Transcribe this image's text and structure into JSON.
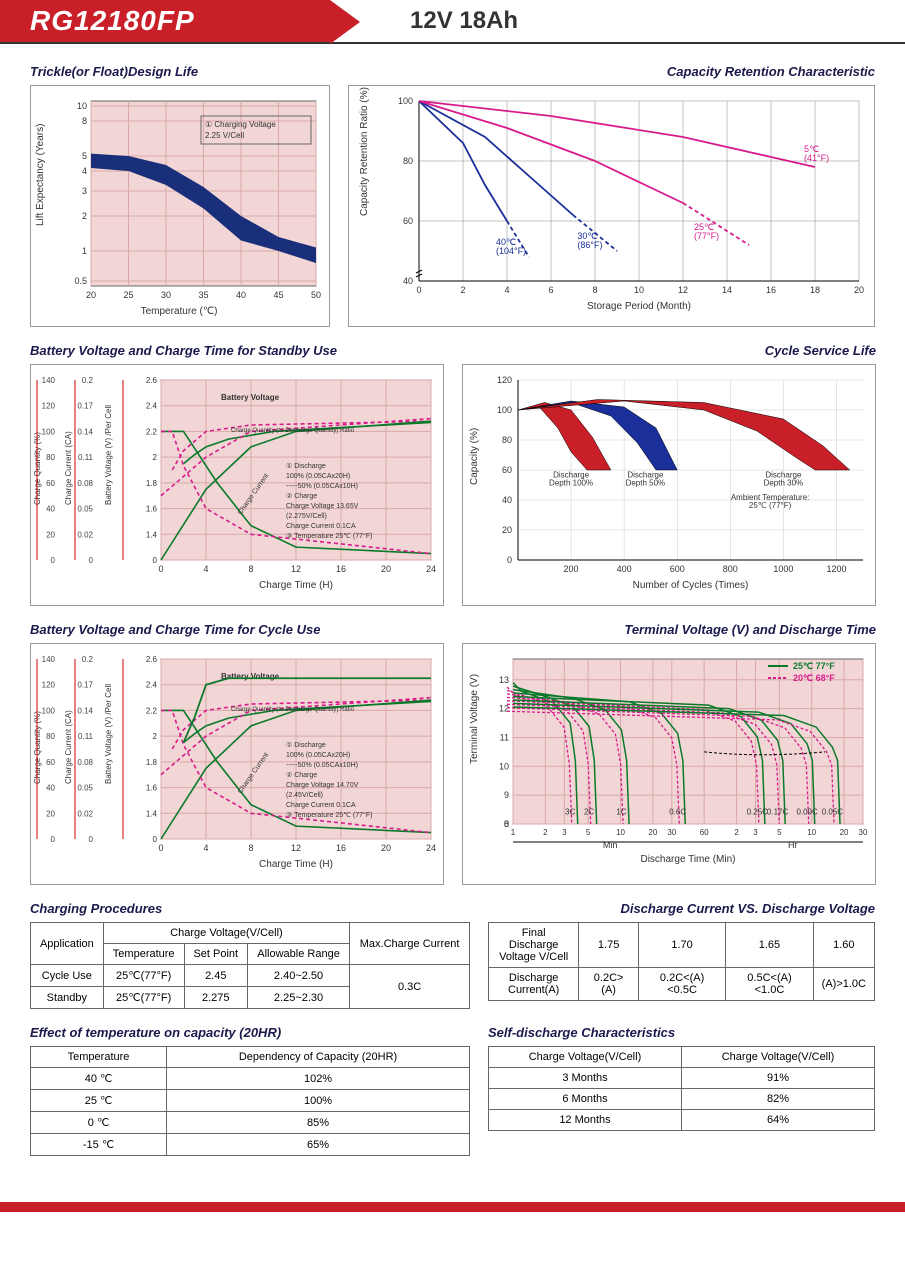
{
  "header": {
    "model": "RG12180FP",
    "spec": "12V  18Ah"
  },
  "charts": {
    "trickle": {
      "title": "Trickle(or Float)Design Life",
      "type": "area-band",
      "xlabel": "Temperature (℃)",
      "ylabel": "Lift  Expectancy (Years)",
      "xticks": [
        20,
        25,
        30,
        35,
        40,
        45,
        50
      ],
      "yticks": [
        0.5,
        1,
        2,
        3,
        4,
        5,
        8,
        10
      ],
      "legend_text": "① Charging Voltage\n2.25 V/Cell",
      "band_color": "#1a2f7a",
      "grid_color": "#d9a8a8",
      "grid_bg": "#f2d6d6",
      "band_upper": [
        [
          20,
          5.2
        ],
        [
          25,
          5.0
        ],
        [
          30,
          4.4
        ],
        [
          35,
          3.2
        ],
        [
          40,
          2.0
        ],
        [
          45,
          1.4
        ],
        [
          50,
          1.1
        ]
      ],
      "band_lower": [
        [
          20,
          4.2
        ],
        [
          25,
          4.0
        ],
        [
          30,
          3.3
        ],
        [
          35,
          2.3
        ],
        [
          40,
          1.3
        ],
        [
          45,
          1.0
        ],
        [
          50,
          0.8
        ]
      ]
    },
    "retention": {
      "title": "Capacity Retention Characteristic",
      "type": "line",
      "xlabel": "Storage Period (Month)",
      "ylabel": "Capacity Retention Ratio (%)",
      "xticks": [
        0,
        2,
        4,
        6,
        8,
        10,
        12,
        14,
        16,
        18,
        20
      ],
      "yticks": [
        40,
        60,
        80,
        100
      ],
      "series": [
        {
          "label": "40℃\n(104°F)",
          "color": "#1a2f9a",
          "solid": [
            [
              0,
              100
            ],
            [
              2,
              86
            ],
            [
              3,
              72
            ],
            [
              4,
              60
            ]
          ],
          "dashed": [
            [
              4,
              60
            ],
            [
              5,
              48
            ]
          ],
          "label_x": 3.5,
          "label_y": 52
        },
        {
          "label": "30℃\n(86°F)",
          "color": "#1a2f9a",
          "solid": [
            [
              0,
              100
            ],
            [
              3,
              88
            ],
            [
              5,
              75
            ],
            [
              7,
              62
            ]
          ],
          "dashed": [
            [
              7,
              62
            ],
            [
              9,
              50
            ]
          ],
          "label_x": 7.2,
          "label_y": 54
        },
        {
          "label": "25℃\n(77°F)",
          "color": "#d81b8c",
          "solid": [
            [
              0,
              100
            ],
            [
              4,
              91
            ],
            [
              8,
              80
            ],
            [
              12,
              66
            ]
          ],
          "dashed": [
            [
              12,
              66
            ],
            [
              15,
              52
            ]
          ],
          "label_x": 12.5,
          "label_y": 57
        },
        {
          "label": "5℃\n(41°F)",
          "color": "#d81b8c",
          "solid": [
            [
              0,
              100
            ],
            [
              6,
              95
            ],
            [
              12,
              88
            ],
            [
              18,
              78
            ]
          ],
          "dashed": [],
          "label_x": 17.5,
          "label_y": 83
        }
      ]
    },
    "standby": {
      "title": "Battery Voltage and Charge Time for Standby Use",
      "type": "multi-axis",
      "xlabel": "Charge Time (H)",
      "xticks": [
        0,
        4,
        8,
        12,
        16,
        20,
        24
      ],
      "y1": {
        "label": "Charge Quantity (%)",
        "ticks": [
          0,
          20,
          40,
          60,
          80,
          100,
          120,
          140
        ]
      },
      "y2": {
        "label": "Charge Current (CA)",
        "ticks": [
          0,
          0.02,
          0.05,
          0.08,
          0.11,
          0.14,
          0.17,
          0.2
        ]
      },
      "y3": {
        "label": "Battery Voltage (V) /Per Cell",
        "ticks": [
          0,
          1.4,
          1.6,
          1.8,
          2.0,
          2.2,
          2.4,
          2.6
        ]
      },
      "grid_bg": "#f2d6d6",
      "grid_color": "#d9a8a8",
      "curves": {
        "batt_voltage_solid": {
          "color": "#0a7a2a",
          "pts": [
            [
              2,
              1.95
            ],
            [
              3,
              2.02
            ],
            [
              4,
              2.08
            ],
            [
              6,
              2.14
            ],
            [
              10,
              2.2
            ],
            [
              24,
              2.27
            ]
          ]
        },
        "batt_voltage_dash": {
          "color": "#d81b8c",
          "pts": [
            [
              1,
              1.9
            ],
            [
              2,
              2.05
            ],
            [
              4,
              2.2
            ],
            [
              8,
              2.25
            ],
            [
              24,
              2.28
            ]
          ]
        },
        "charge_qty_solid": {
          "color": "#0a7a2a",
          "pts": [
            [
              0,
              0
            ],
            [
              4,
              55
            ],
            [
              8,
              88
            ],
            [
              12,
              100
            ],
            [
              24,
              108
            ]
          ]
        },
        "charge_qty_dash": {
          "color": "#d81b8c",
          "pts": [
            [
              0,
              50
            ],
            [
              4,
              80
            ],
            [
              8,
              100
            ],
            [
              24,
              110
            ]
          ]
        },
        "charge_current_solid": {
          "color": "#0a7a2a",
          "pts": [
            [
              0,
              0.14
            ],
            [
              2,
              0.14
            ],
            [
              3,
              0.12
            ],
            [
              5,
              0.08
            ],
            [
              8,
              0.03
            ],
            [
              12,
              0.01
            ],
            [
              24,
              0.005
            ]
          ]
        },
        "charge_current_dash": {
          "color": "#d81b8c",
          "pts": [
            [
              0,
              0.14
            ],
            [
              1,
              0.14
            ],
            [
              2,
              0.1
            ],
            [
              4,
              0.05
            ],
            [
              8,
              0.02
            ],
            [
              24,
              0.005
            ]
          ]
        }
      },
      "annot": [
        "① Discharge",
        "   100% (0.05CAx20H)",
        "-----50% (0.05CAx10H)",
        "② Charge",
        "   Charge Voltage 13.65V",
        "   (2.275V/Cell)",
        "   Charge Current 0.1CA",
        "③ Temperature 25℃ (77°F)"
      ],
      "annot_labels": [
        "Battery Voltage",
        "Charge Quantity (to-Discharge Quantity) Ratio",
        "Charge Current"
      ]
    },
    "cycle_life": {
      "title": "Cycle Service Life",
      "type": "area-band",
      "xlabel": "Number of Cycles (Times)",
      "ylabel": "Capacity (%)",
      "xticks": [
        0,
        200,
        400,
        600,
        800,
        1000,
        1200
      ],
      "yticks": [
        0,
        20,
        40,
        60,
        80,
        100,
        120
      ],
      "bands": [
        {
          "label": "Discharge\nDepth 100%",
          "fill": "#c91f28",
          "upper": [
            [
              0,
              100
            ],
            [
              100,
              105
            ],
            [
              200,
              100
            ],
            [
              280,
              82
            ],
            [
              350,
              60
            ]
          ],
          "lower": [
            [
              0,
              100
            ],
            [
              80,
              102
            ],
            [
              150,
              88
            ],
            [
              200,
              72
            ],
            [
              260,
              60
            ]
          ],
          "lx": 200,
          "ly": 55
        },
        {
          "label": "Discharge\nDepth 50%",
          "fill": "#1a2f9a",
          "upper": [
            [
              0,
              100
            ],
            [
              200,
              106
            ],
            [
              400,
              102
            ],
            [
              520,
              88
            ],
            [
              600,
              60
            ]
          ],
          "lower": [
            [
              0,
              100
            ],
            [
              200,
              105
            ],
            [
              350,
              96
            ],
            [
              450,
              78
            ],
            [
              520,
              60
            ]
          ],
          "lx": 480,
          "ly": 55
        },
        {
          "label": "Discharge\nDepth 30%",
          "fill": "#c91f28",
          "upper": [
            [
              0,
              100
            ],
            [
              300,
              107
            ],
            [
              700,
              105
            ],
            [
              1000,
              94
            ],
            [
              1150,
              76
            ],
            [
              1250,
              60
            ]
          ],
          "lower": [
            [
              0,
              100
            ],
            [
              400,
              106
            ],
            [
              700,
              100
            ],
            [
              900,
              86
            ],
            [
              1050,
              68
            ],
            [
              1120,
              60
            ]
          ],
          "lx": 1000,
          "ly": 55
        }
      ],
      "ambient_text": "Ambient Temperature:\n25℃ (77°F)",
      "ambient_x": 950,
      "ambient_y": 40
    },
    "cycle_charge": {
      "title": "Battery Voltage and Charge Time for Cycle Use",
      "annot": [
        "① Discharge",
        "   100% (0.05CAx20H)",
        "-----50% (0.05CAx10H)",
        "② Charge",
        "   Charge Voltage 14.70V",
        "   (2.45V/Cell)",
        "   Charge Current 0.1CA",
        "③ Temperature 25℃ (77°F)"
      ]
    },
    "discharge": {
      "title": "Terminal Voltage (V) and Discharge Time",
      "type": "line",
      "ylabel": "Terminal Voltage (V)",
      "xlabel": "Discharge Time (Min)",
      "yticks": [
        0,
        8,
        9,
        10,
        11,
        12,
        13
      ],
      "xticks_min": [
        "1",
        "2",
        "3",
        "5",
        "10",
        "20",
        "30",
        "60"
      ],
      "xticks_hr": [
        "2",
        "3",
        "5",
        "10",
        "20",
        "30"
      ],
      "legend": [
        {
          "label": "25℃ 77°F",
          "color": "#0a7a2a",
          "dash": false
        },
        {
          "label": "20℃ 68°F",
          "color": "#d81b8c",
          "dash": true
        }
      ],
      "grid_bg": "#f2d6d6",
      "curves": [
        {
          "label": "3C",
          "x_end": 4
        },
        {
          "label": "2C",
          "x_end": 6
        },
        {
          "label": "1C",
          "x_end": 12
        },
        {
          "label": "0.6C",
          "x_end": 40
        },
        {
          "label": "0.25C",
          "x_end": 220
        },
        {
          "label": "0.17C",
          "x_end": 340
        },
        {
          "label": "0.09C",
          "x_end": 640
        },
        {
          "label": "0.05C",
          "x_end": 1100
        }
      ]
    }
  },
  "tables": {
    "charging": {
      "title": "Charging Procedures",
      "headers": {
        "app": "Application",
        "cv": "Charge Voltage(V/Cell)",
        "temp": "Temperature",
        "sp": "Set Point",
        "ar": "Allowable Range",
        "max": "Max.Charge Current"
      },
      "rows": [
        {
          "app": "Cycle Use",
          "temp": "25℃(77°F)",
          "sp": "2.45",
          "ar": "2.40~2.50"
        },
        {
          "app": "Standby",
          "temp": "25℃(77°F)",
          "sp": "2.275",
          "ar": "2.25~2.30"
        }
      ],
      "max": "0.3C"
    },
    "discharge_v": {
      "title": "Discharge Current VS. Discharge Voltage",
      "h1": "Final Discharge\nVoltage V/Cell",
      "h2": "Discharge\nCurrent(A)",
      "vcells": [
        "1.75",
        "1.70",
        "1.65",
        "1.60"
      ],
      "currents": [
        "0.2C>(A)",
        "0.2C<(A)<0.5C",
        "0.5C<(A)<1.0C",
        "(A)>1.0C"
      ]
    },
    "temp_capacity": {
      "title": "Effect of temperature on capacity (20HR)",
      "h1": "Temperature",
      "h2": "Dependency of Capacity (20HR)",
      "rows": [
        [
          "40 ℃",
          "102%"
        ],
        [
          "25 ℃",
          "100%"
        ],
        [
          "0 ℃",
          "85%"
        ],
        [
          "-15 ℃",
          "65%"
        ]
      ]
    },
    "self_discharge": {
      "title": "Self-discharge Characteristics",
      "h1": "Charge Voltage(V/Cell)",
      "h2": "Charge Voltage(V/Cell)",
      "rows": [
        [
          "3 Months",
          "91%"
        ],
        [
          "6 Months",
          "82%"
        ],
        [
          "12 Months",
          "64%"
        ]
      ]
    }
  }
}
